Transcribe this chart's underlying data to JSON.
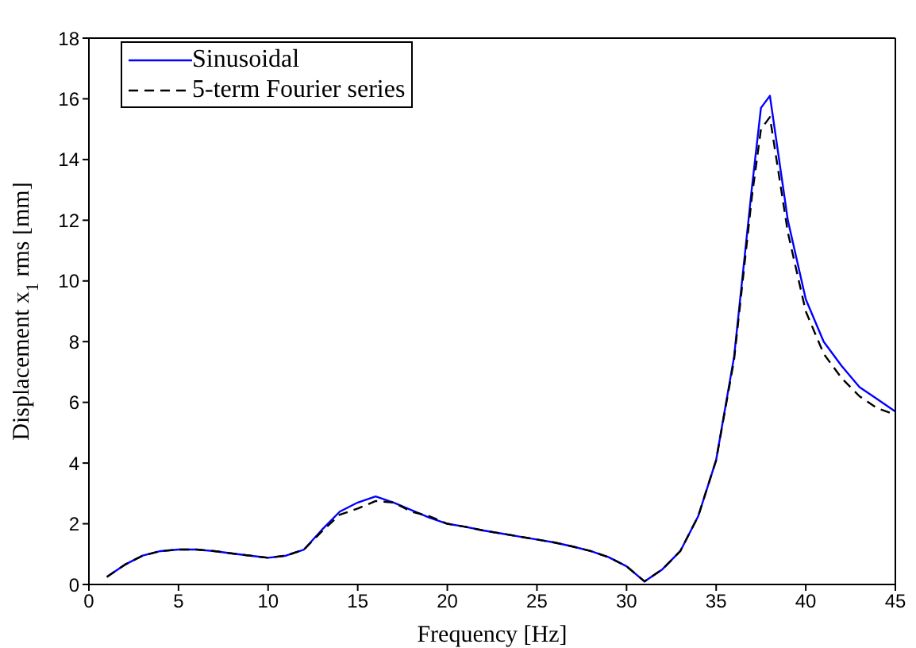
{
  "chart_data": {
    "type": "line",
    "xlabel": "Frequency [Hz]",
    "ylabel": "Displacement x$_{1}$ rms [mm]",
    "xlim": [
      0,
      45
    ],
    "xticks": [
      0,
      5,
      10,
      15,
      20,
      25,
      30,
      35,
      40,
      45
    ],
    "ylim": [
      0,
      18
    ],
    "yticks": [
      0,
      2,
      4,
      6,
      8,
      10,
      12,
      14,
      16,
      18
    ],
    "grid": false,
    "legend": "top left",
    "marker": "none",
    "series": [
      {
        "name": "Sinusoidal",
        "color": "#0000ff",
        "line_style": "solid",
        "x": [
          1,
          2,
          3,
          4,
          5,
          6,
          7,
          8,
          9,
          10,
          11,
          12,
          13,
          14,
          15,
          16,
          17,
          18,
          19,
          20,
          21,
          22,
          23,
          24,
          25,
          26,
          27,
          28,
          29,
          30,
          31,
          32,
          33,
          34,
          35,
          36,
          37,
          37.5,
          38,
          39,
          40,
          41,
          42,
          43,
          44,
          45
        ],
        "values": [
          0.25,
          0.65,
          0.95,
          1.1,
          1.15,
          1.15,
          1.1,
          1.02,
          0.95,
          0.88,
          0.95,
          1.15,
          1.8,
          2.4,
          2.7,
          2.9,
          2.7,
          2.45,
          2.2,
          2.0,
          1.9,
          1.78,
          1.68,
          1.58,
          1.48,
          1.38,
          1.25,
          1.1,
          0.9,
          0.6,
          0.1,
          0.5,
          1.1,
          2.25,
          4.1,
          7.5,
          13.1,
          15.7,
          16.1,
          12.0,
          9.4,
          8.0,
          7.2,
          6.5,
          6.1,
          5.7
        ]
      },
      {
        "name": "5-term Fourier series",
        "color": "#000000",
        "line_style": "dashed",
        "x": [
          1,
          2,
          3,
          4,
          5,
          6,
          7,
          8,
          9,
          10,
          11,
          12,
          13,
          14,
          15,
          16,
          17,
          18,
          19,
          20,
          21,
          22,
          23,
          24,
          25,
          26,
          27,
          28,
          29,
          30,
          31,
          32,
          33,
          34,
          35,
          36,
          37,
          37.5,
          38,
          39,
          40,
          41,
          42,
          43,
          44,
          45
        ],
        "values": [
          0.25,
          0.65,
          0.95,
          1.1,
          1.15,
          1.15,
          1.1,
          1.02,
          0.95,
          0.88,
          0.95,
          1.15,
          1.75,
          2.3,
          2.5,
          2.75,
          2.7,
          2.4,
          2.25,
          2.0,
          1.9,
          1.78,
          1.68,
          1.58,
          1.48,
          1.38,
          1.25,
          1.1,
          0.9,
          0.6,
          0.1,
          0.5,
          1.1,
          2.25,
          4.1,
          7.4,
          12.8,
          15.0,
          15.4,
          11.6,
          9.0,
          7.6,
          6.8,
          6.2,
          5.8,
          5.6
        ]
      }
    ]
  }
}
